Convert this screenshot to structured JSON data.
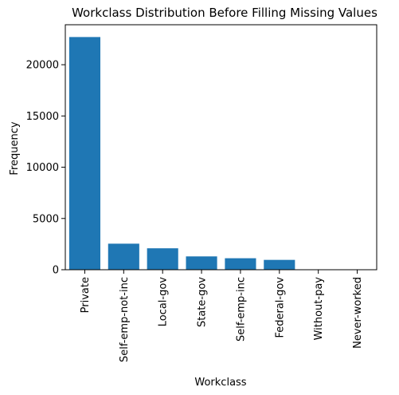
{
  "chart_data": {
    "type": "bar",
    "title": "Workclass Distribution Before Filling Missing Values",
    "xlabel": "Workclass",
    "ylabel": "Frequency",
    "categories": [
      "Private",
      "Self-emp-not-inc",
      "Local-gov",
      "State-gov",
      "Self-emp-inc",
      "Federal-gov",
      "Without-pay",
      "Never-worked"
    ],
    "values": [
      22700,
      2540,
      2090,
      1300,
      1120,
      960,
      14,
      7
    ],
    "ylim": [
      0,
      23900
    ],
    "yticks": [
      0,
      5000,
      10000,
      15000,
      20000
    ],
    "grid": false,
    "bar_color": "#1f77b4"
  }
}
